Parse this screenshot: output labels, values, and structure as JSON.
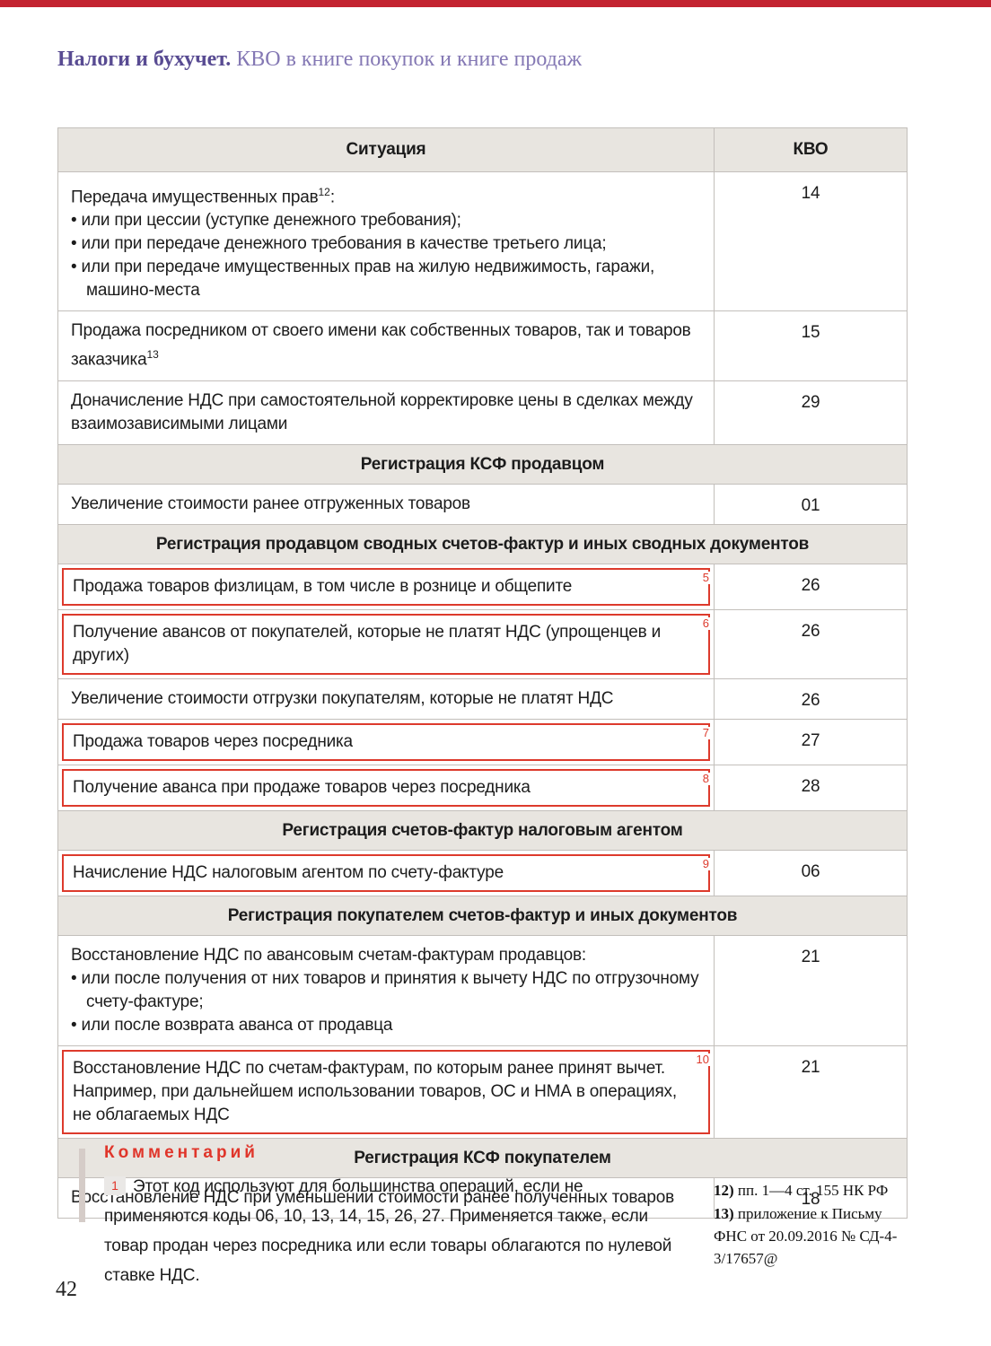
{
  "header": {
    "brand": "Налоги и бухучет.",
    "title": "КВО в книге покупок и книге продаж"
  },
  "table": {
    "columns": {
      "situation": "Ситуация",
      "kvo": "КВО"
    },
    "rows": [
      {
        "type": "row",
        "kvo": "14",
        "segments": [
          {
            "t": "Передача имущественных прав"
          },
          {
            "sup": "12"
          },
          {
            "t": ":"
          }
        ],
        "bullets": [
          "или при цессии (уступке денежного требования);",
          "или при передаче денежного требования в качестве третьего лица;",
          "или при передаче имущественных прав на жилую недвижимость, гаражи, машино-места"
        ]
      },
      {
        "type": "row",
        "kvo": "15",
        "segments": [
          {
            "t": "Продажа посредником от своего имени как собственных товаров, так и товаров заказчика"
          },
          {
            "sup": "13"
          }
        ]
      },
      {
        "type": "row",
        "kvo": "29",
        "segments": [
          {
            "t": "Доначисление НДС при самостоятельной корректировке цены в сделках между взаимозависимыми лицами"
          }
        ]
      },
      {
        "type": "section",
        "label": "Регистрация КСФ продавцом"
      },
      {
        "type": "row",
        "kvo": "01",
        "segments": [
          {
            "t": "Увеличение стоимости ранее отгруженных товаров"
          }
        ]
      },
      {
        "type": "section",
        "label": "Регистрация продавцом сводных счетов-фактур и иных сводных документов"
      },
      {
        "type": "row",
        "kvo": "26",
        "ref": "5",
        "segments": [
          {
            "t": "Продажа товаров физлицам, в том числе в рознице и общепите"
          }
        ]
      },
      {
        "type": "row",
        "kvo": "26",
        "ref": "6",
        "segments": [
          {
            "t": "Получение авансов от покупателей, которые не платят НДС (упрощенцев и других)"
          }
        ]
      },
      {
        "type": "row",
        "kvo": "26",
        "segments": [
          {
            "t": "Увеличение стоимости отгрузки покупателям, которые не платят НДС"
          }
        ]
      },
      {
        "type": "row",
        "kvo": "27",
        "ref": "7",
        "segments": [
          {
            "t": "Продажа товаров через посредника"
          }
        ]
      },
      {
        "type": "row",
        "kvo": "28",
        "ref": "8",
        "segments": [
          {
            "t": "Получение аванса при продаже товаров через посредника"
          }
        ]
      },
      {
        "type": "section",
        "label": "Регистрация счетов-фактур налоговым агентом"
      },
      {
        "type": "row",
        "kvo": "06",
        "ref": "9",
        "segments": [
          {
            "t": "Начисление НДС налоговым агентом по счету-фактуре"
          }
        ]
      },
      {
        "type": "section",
        "label": "Регистрация покупателем счетов-фактур и иных документов"
      },
      {
        "type": "row",
        "kvo": "21",
        "segments": [
          {
            "t": "Восстановление НДС по авансовым счетам-фактурам продавцов:"
          }
        ],
        "bullets": [
          "или после получения от них товаров и принятия к вычету НДС по отгрузочному счету-фактуре;",
          "или после возврата аванса от продавца"
        ]
      },
      {
        "type": "row",
        "kvo": "21",
        "ref": "10",
        "segments": [
          {
            "t": "Восстановление НДС по счетам-фактурам, по которым ранее принят вычет. Например, при дальнейшем использовании товаров, ОС и НМА в операциях, не облагаемых НДС"
          }
        ]
      },
      {
        "type": "section",
        "label": "Регистрация КСФ покупателем"
      },
      {
        "type": "row",
        "kvo": "18",
        "segments": [
          {
            "t": "Восстановление НДС при уменьшении стоимости ранее полученных товаров"
          }
        ]
      }
    ]
  },
  "comment": {
    "heading": "Комментарий",
    "marker": "1",
    "text": "Этот код используют для большинства операций, если не применяются коды 06, 10, 13, 14, 15, 26, 27. Применяется также, если товар продан через посредника или если товары облагаются по нулевой ставке НДС."
  },
  "footnotes": [
    {
      "num": "12)",
      "text": "пп. 1—4 ст. 155 НК РФ"
    },
    {
      "num": "13)",
      "text": "приложение к Письму ФНС от 20.09.2016 № СД-4-3/17657@"
    }
  ],
  "page_number": "42",
  "colors": {
    "accent_red": "#dd3a2c",
    "top_bar": "#c32330",
    "brand_purple": "#584b92",
    "title_purple": "#8478b4",
    "section_bg": "#e8e5e0",
    "table_border": "#c3bfbb"
  }
}
